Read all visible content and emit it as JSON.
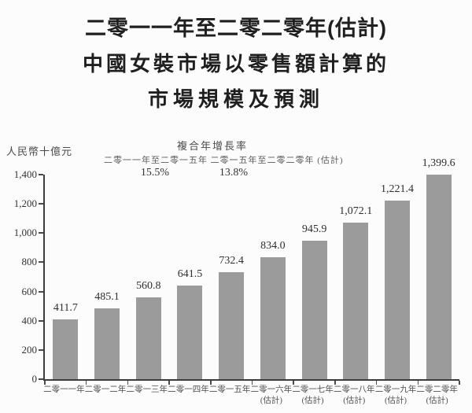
{
  "title": {
    "line1": "二零一一年至二零二零年(估計)",
    "line2": "中國女裝市場以零售額計算的",
    "line3": "市場規模及預測"
  },
  "chart_data": {
    "type": "bar",
    "title": "二零一一年至二零二零年(估計)中國女裝市場以零售額計算的市場規模及預測",
    "unit_label": "人民幣十億元",
    "cagr": {
      "header": "複合年增長率",
      "periods": [
        {
          "label": "二零一一年至二零一五年",
          "value": "15.5%"
        },
        {
          "label": "二零一五年至二零二零年 (估計)",
          "value": "13.8%"
        }
      ]
    },
    "categories": [
      {
        "year": "二零一一年",
        "note": ""
      },
      {
        "year": "二零一二年",
        "note": ""
      },
      {
        "year": "二零一三年",
        "note": ""
      },
      {
        "year": "二零一四年",
        "note": ""
      },
      {
        "year": "二零一五年",
        "note": ""
      },
      {
        "year": "二零一六年",
        "note": "(估計)"
      },
      {
        "year": "二零一七年",
        "note": "(估計)"
      },
      {
        "year": "二零一八年",
        "note": "(估計)"
      },
      {
        "year": "二零一九年",
        "note": "(估計)"
      },
      {
        "year": "二零二零年",
        "note": "(估計)"
      }
    ],
    "values": [
      411.7,
      485.1,
      560.8,
      641.5,
      732.4,
      834.0,
      945.9,
      1072.1,
      1221.4,
      1399.6
    ],
    "value_labels": [
      "411.7",
      "485.1",
      "560.8",
      "641.5",
      "732.4",
      "834.0",
      "945.9",
      "1,072.1",
      "1,221.4",
      "1,399.6"
    ],
    "ylabel": "人民幣十億元",
    "ylim": [
      0,
      1400
    ],
    "ytick_values": [
      0,
      200,
      400,
      600,
      800,
      1000,
      1200,
      1400
    ],
    "ytick_labels": [
      "0",
      "200",
      "400",
      "600",
      "800",
      "1,000",
      "1,200",
      "1,400"
    ],
    "grid": false,
    "legend": false,
    "bar_color": "#9b9b9b"
  }
}
